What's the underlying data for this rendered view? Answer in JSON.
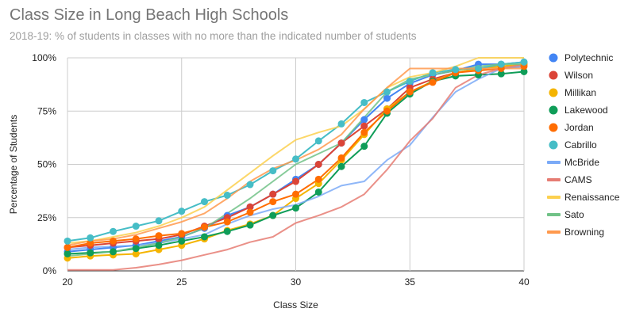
{
  "chart_data": {
    "type": "line",
    "title": "Class Size in Long Beach High Schools",
    "subtitle": "2018-19: % of students in classes with no more than the indicated number of students",
    "xlabel": "Class Size",
    "ylabel": "Percentage of Students",
    "xlim": [
      20,
      40
    ],
    "ylim": [
      0,
      100
    ],
    "x_ticks": [
      20,
      25,
      30,
      35,
      40
    ],
    "y_ticks": [
      0,
      25,
      50,
      75,
      100
    ],
    "y_tick_labels": [
      "0%",
      "25%",
      "50%",
      "75%",
      "100%"
    ],
    "grid": true,
    "legend_position": "right",
    "x": [
      20,
      21,
      22,
      23,
      24,
      25,
      26,
      27,
      28,
      29,
      30,
      31,
      32,
      33,
      34,
      35,
      36,
      37,
      38,
      39,
      40
    ],
    "series": [
      {
        "name": "Polytechnic",
        "color": "#4285f4",
        "markers": true,
        "values": [
          9,
          10,
          11,
          12,
          14,
          16,
          20,
          26,
          30,
          36,
          43,
          50,
          60,
          71,
          81,
          88,
          92,
          94,
          97,
          97,
          98
        ]
      },
      {
        "name": "Wilson",
        "color": "#db4437",
        "markers": true,
        "values": [
          11,
          12,
          13,
          14,
          15,
          17,
          21,
          25,
          30,
          36,
          42,
          50,
          60,
          68,
          76,
          86,
          90,
          93,
          95,
          96,
          97
        ]
      },
      {
        "name": "Millikan",
        "color": "#f4b400",
        "markers": true,
        "values": [
          6,
          7,
          7.5,
          8,
          10,
          12,
          15,
          19,
          22,
          26,
          34,
          41,
          52,
          64,
          76,
          84,
          89,
          93,
          95,
          96,
          97
        ]
      },
      {
        "name": "Lakewood",
        "color": "#0f9d58",
        "markers": true,
        "values": [
          8,
          8.5,
          9,
          10.5,
          12,
          14,
          16,
          18.5,
          21.5,
          26,
          29.5,
          37,
          49,
          58.5,
          74,
          83,
          89,
          91.5,
          92,
          92.5,
          93.5
        ]
      },
      {
        "name": "Jordan",
        "color": "#ff6d01",
        "markers": true,
        "values": [
          11,
          13,
          14,
          15,
          16.5,
          17.5,
          20.5,
          23,
          27.5,
          32.5,
          36,
          43,
          53,
          65,
          75,
          84,
          88.5,
          93,
          94,
          95,
          96
        ]
      },
      {
        "name": "Cabrillo",
        "color": "#46bdc6",
        "markers": true,
        "values": [
          14,
          15.5,
          18.5,
          21,
          23.5,
          28,
          32.5,
          35.5,
          40.5,
          47,
          52.5,
          61,
          69,
          79,
          84,
          89,
          93,
          94.5,
          95,
          97,
          98
        ]
      },
      {
        "name": "McBride",
        "color": "#7baaf7",
        "markers": false,
        "values": [
          10,
          11,
          11.5,
          12,
          13,
          15,
          17,
          22,
          26,
          29,
          31,
          35,
          40,
          42,
          52,
          59,
          72,
          84,
          90,
          95,
          96
        ]
      },
      {
        "name": "CAMS",
        "color": "#e67c73",
        "markers": false,
        "values": [
          0.5,
          0.5,
          0.5,
          1.5,
          3,
          5,
          7.5,
          10,
          13.5,
          16,
          22.5,
          26,
          30,
          36,
          47.5,
          61,
          71.5,
          86,
          92,
          95,
          97
        ]
      },
      {
        "name": "Renaissance",
        "color": "#fcd04f",
        "markers": false,
        "values": [
          13,
          14,
          16,
          18,
          21,
          25,
          30,
          38,
          46,
          54,
          61.5,
          65,
          68,
          76,
          86,
          91,
          93,
          96,
          100,
          100,
          100
        ]
      },
      {
        "name": "Sato",
        "color": "#71c287",
        "markers": false,
        "values": [
          7,
          8,
          9,
          11,
          13,
          16,
          20,
          27,
          34,
          42,
          50,
          55,
          60,
          72,
          84,
          90,
          92,
          94,
          96,
          97,
          97
        ]
      },
      {
        "name": "Browning",
        "color": "#ff994d",
        "markers": false,
        "values": [
          12,
          14,
          15,
          17,
          20,
          23,
          27,
          34,
          42,
          48,
          52,
          57,
          64,
          76,
          86,
          95,
          95,
          95,
          95,
          95,
          95
        ]
      }
    ]
  }
}
